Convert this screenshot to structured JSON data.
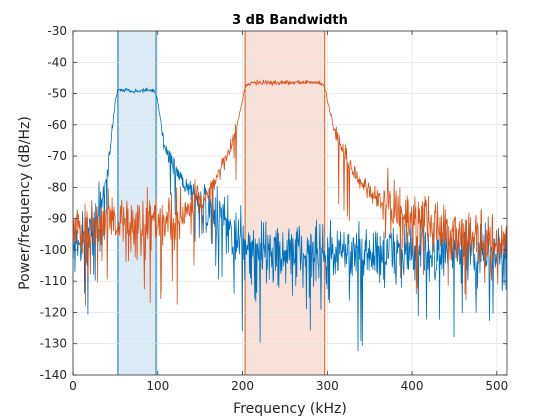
{
  "chart_data": {
    "type": "line",
    "title": "3 dB Bandwidth",
    "xlabel": "Frequency (kHz)",
    "ylabel": "Power/frequency (dB/Hz)",
    "xlim": [
      0,
      512
    ],
    "ylim": [
      -140,
      -30
    ],
    "xticks": [
      0,
      100,
      200,
      300,
      400,
      500
    ],
    "yticks": [
      -140,
      -130,
      -120,
      -110,
      -100,
      -90,
      -80,
      -70,
      -60,
      -50,
      -40,
      -30
    ],
    "grid": true,
    "bands": [
      {
        "x": [
          53,
          98
        ],
        "color": "#0072BD",
        "fill": "#dbeaf4"
      },
      {
        "x": [
          203,
          297
        ],
        "color": "#D95319",
        "fill": "#f8e1d8"
      }
    ],
    "series": [
      {
        "color": "#0072BD",
        "x": [
          0,
          10,
          20,
          25,
          30,
          35,
          40,
          45,
          48,
          50,
          53,
          55,
          60,
          65,
          70,
          75,
          80,
          85,
          90,
          95,
          98,
          100,
          103,
          106,
          110,
          115,
          120,
          130,
          140,
          150,
          160,
          170,
          180,
          190,
          200,
          210,
          220,
          240,
          260,
          280,
          300,
          320,
          340,
          360,
          380,
          400,
          420,
          440,
          460,
          480,
          500,
          512
        ],
        "y": [
          -98,
          -97,
          -95,
          -92,
          -88,
          -83,
          -76,
          -66,
          -57,
          -52,
          -49,
          -48.5,
          -49,
          -49,
          -49,
          -49.5,
          -49,
          -49,
          -49,
          -49.5,
          -50,
          -53,
          -58,
          -63,
          -68,
          -71,
          -74,
          -78,
          -81,
          -85,
          -88,
          -90,
          -93,
          -95,
          -97,
          -100,
          -100,
          -101,
          -101,
          -101,
          -101,
          -101,
          -102,
          -101,
          -101,
          -101,
          -101,
          -101,
          -102,
          -102,
          -101,
          -101
        ]
      },
      {
        "color": "#D95319",
        "x": [
          0,
          20,
          40,
          60,
          80,
          100,
          120,
          140,
          150,
          160,
          170,
          180,
          190,
          195,
          200,
          203,
          206,
          210,
          220,
          240,
          260,
          280,
          290,
          294,
          297,
          300,
          305,
          310,
          320,
          330,
          340,
          350,
          360,
          370,
          380,
          400,
          420,
          440,
          460,
          480,
          500,
          512
        ],
        "y": [
          -92,
          -93,
          -92,
          -92,
          -92,
          -91,
          -89,
          -87,
          -85,
          -82,
          -77,
          -72,
          -64,
          -58,
          -52,
          -48,
          -47,
          -46.5,
          -46.5,
          -46.5,
          -46.5,
          -46.5,
          -46.5,
          -47,
          -48,
          -52,
          -58,
          -63,
          -70,
          -75,
          -79,
          -82,
          -84,
          -86,
          -88,
          -90,
          -92,
          -94,
          -95,
          -96,
          -97,
          -97
        ]
      }
    ]
  }
}
